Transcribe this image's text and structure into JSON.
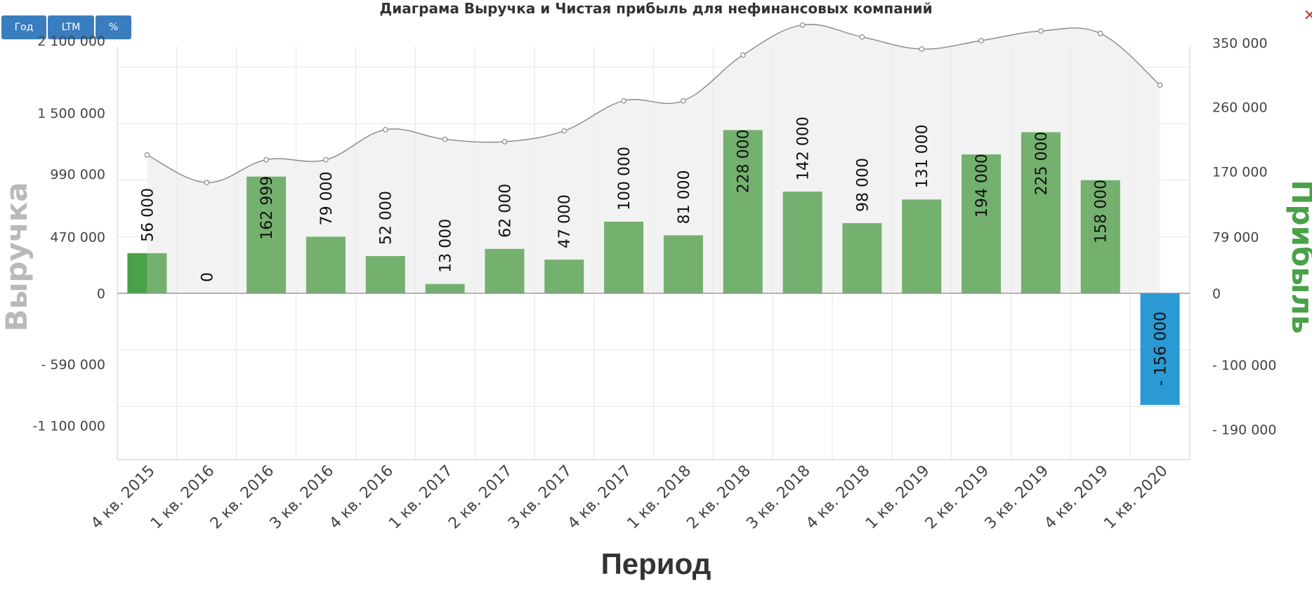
{
  "title": "Диаграма Выручка и Чистая прибыль для нефинансовых компаний",
  "buttons": [
    "Год",
    "LTM",
    "%"
  ],
  "close_glyph": "✕",
  "colors": {
    "profit_bar": "#74b06e",
    "profit_bar_highlight": "#4aa248",
    "loss_bar": "#2b9ad4",
    "revenue_line": "#888888",
    "revenue_area": "#f2f2f2",
    "left_axis_title": "#b9b9b9",
    "right_axis_title": "#4aa248"
  },
  "chart_data": {
    "type": "bar",
    "title": "Диаграма Выручка и Чистая прибыль для нефинансовых компаний",
    "xlabel": "Период",
    "ylabel_left": "Выручка",
    "ylabel_right": "Прибыль",
    "categories": [
      "4 кв. 2015",
      "1 кв. 2016",
      "2 кв. 2016",
      "3 кв. 2016",
      "4 кв. 2016",
      "1 кв. 2017",
      "2 кв. 2017",
      "3 кв. 2017",
      "4 кв. 2017",
      "1 кв. 2018",
      "2 кв. 2018",
      "3 кв. 2018",
      "4 кв. 2018",
      "1 кв. 2019",
      "2 кв. 2019",
      "3 кв. 2019",
      "4 кв. 2019",
      "1 кв. 2020"
    ],
    "left_ticks": [
      {
        "value": 2100000,
        "label": "2 100 000"
      },
      {
        "value": 1500000,
        "label": "1 500 000"
      },
      {
        "value": 990000,
        "label": "990 000"
      },
      {
        "value": 470000,
        "label": "470 000"
      },
      {
        "value": 0,
        "label": "0"
      },
      {
        "value": -590000,
        "label": "- 590 000"
      },
      {
        "value": -1100000,
        "label": "-1 100 000"
      }
    ],
    "right_ticks": [
      {
        "value": 350000,
        "label": "350 000"
      },
      {
        "value": 260000,
        "label": "260 000"
      },
      {
        "value": 170000,
        "label": "170 000"
      },
      {
        "value": 79000,
        "label": "79 000"
      },
      {
        "value": 0,
        "label": "0"
      },
      {
        "value": -100000,
        "label": "- 100 000"
      },
      {
        "value": -190000,
        "label": "- 190 000"
      }
    ],
    "series": [
      {
        "name": "Прибыль",
        "type": "bar",
        "axis": "right",
        "values": [
          56000,
          0,
          162999,
          79000,
          52000,
          13000,
          62000,
          47000,
          100000,
          81000,
          228000,
          142000,
          98000,
          131000,
          194000,
          225000,
          158000,
          -156000
        ],
        "labels": [
          "56 000",
          "0",
          "162 999",
          "79 000",
          "52 000",
          "13 000",
          "62 000",
          "47 000",
          "100 000",
          "81 000",
          "228 000",
          "142 000",
          "98 000",
          "131 000",
          "194 000",
          "225 000",
          "158 000",
          "- 156 000"
        ]
      },
      {
        "name": "Выручка",
        "type": "area",
        "axis": "left",
        "values": [
          1150000,
          920000,
          1110000,
          1110000,
          1360000,
          1280000,
          1260000,
          1350000,
          1600000,
          1600000,
          1980000,
          2230000,
          2130000,
          2030000,
          2100000,
          2180000,
          2160000,
          1730000
        ]
      }
    ]
  }
}
